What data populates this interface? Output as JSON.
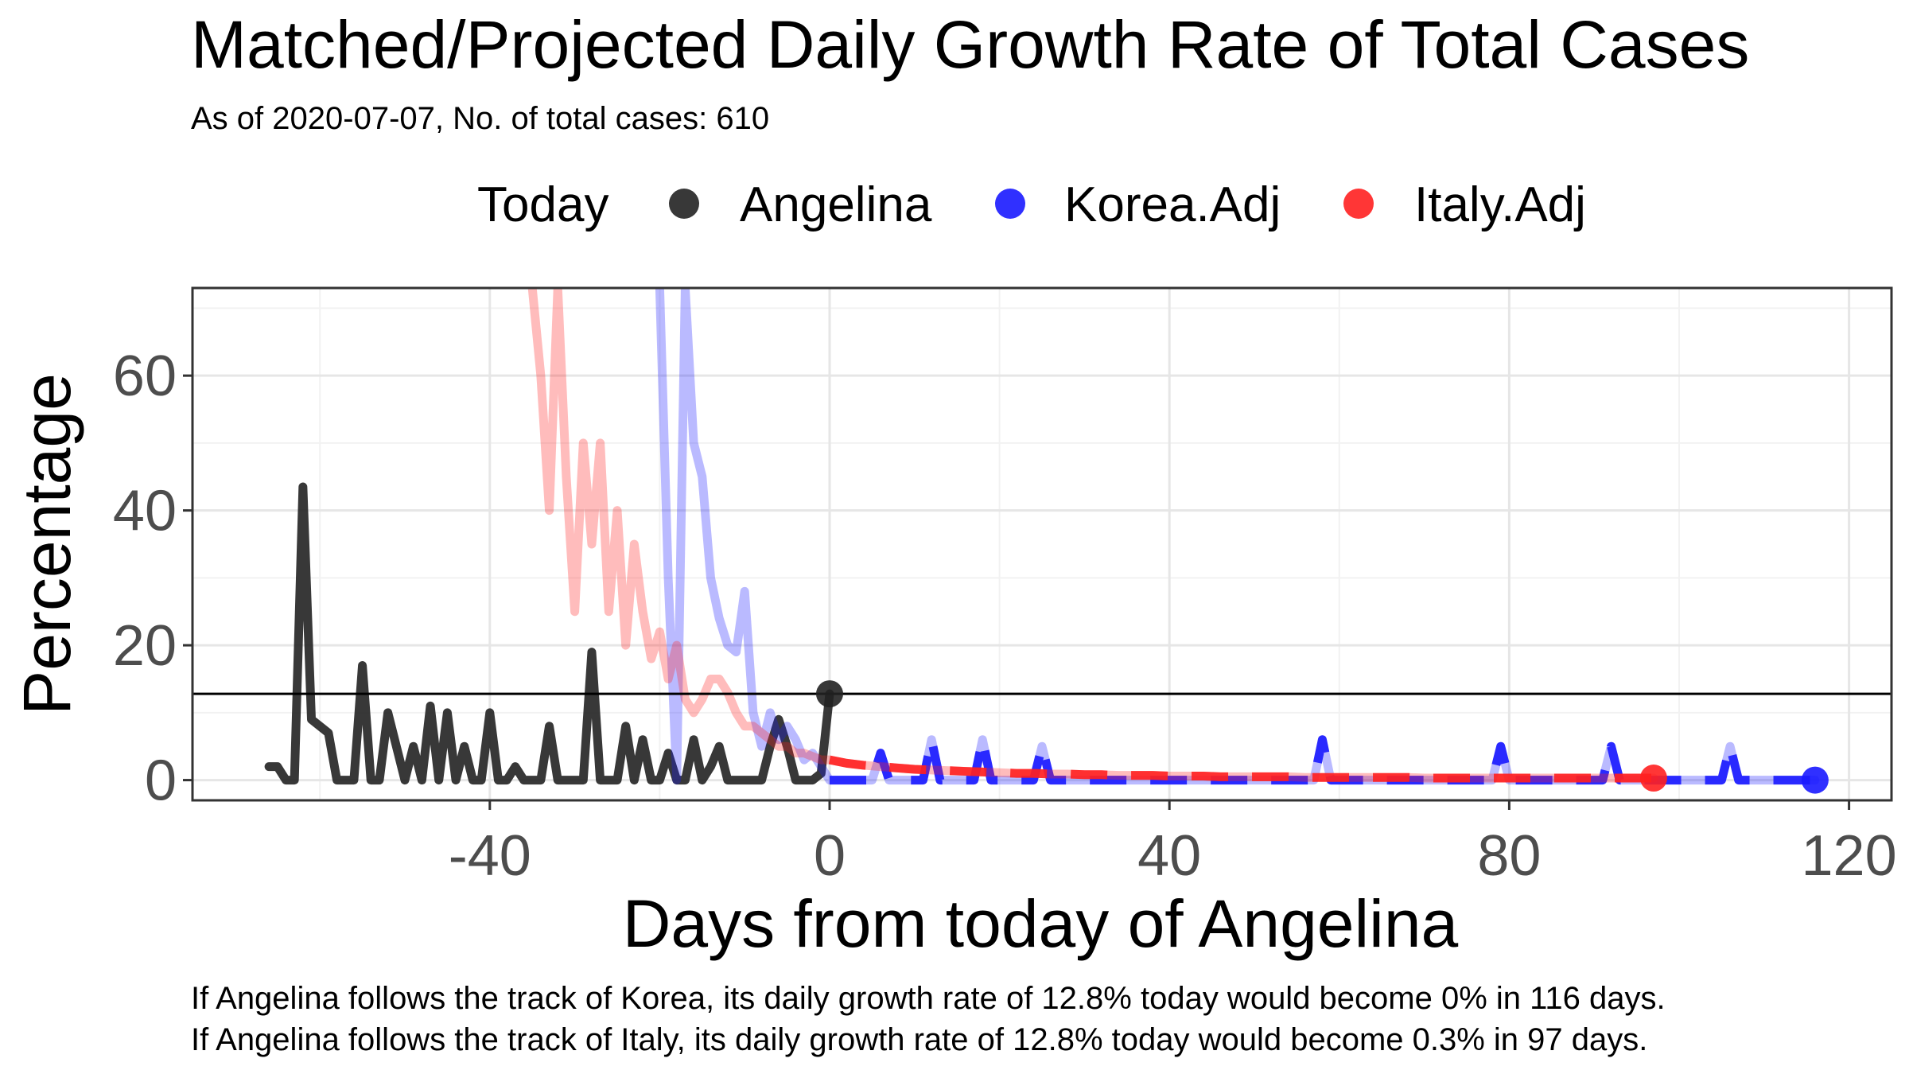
{
  "chart_data": {
    "type": "line",
    "title": "Matched/Projected Daily Growth Rate of Total Cases",
    "subtitle": "As of 2020-07-07, No. of total cases: 610",
    "xlabel": "Days from today of Angelina",
    "ylabel": "Percentage",
    "xlim": [
      -75,
      125
    ],
    "ylim": [
      -3,
      73
    ],
    "x_ticks": [
      -40,
      0,
      40,
      80,
      120
    ],
    "y_ticks": [
      0,
      20,
      40,
      60
    ],
    "grid": true,
    "legend": {
      "title": "Today",
      "placement": "top",
      "entries": [
        {
          "label": "Angelina",
          "color": "#222222"
        },
        {
          "label": "Korea.Adj",
          "color": "#1a1aff"
        },
        {
          "label": "Italy.Adj",
          "color": "#ff2020"
        }
      ]
    },
    "reference_line": {
      "y": 12.8
    },
    "series": [
      {
        "name": "Angelina",
        "color": "#222222",
        "style": "solid",
        "x": [
          -66,
          -65,
          -64,
          -63,
          -62,
          -61,
          -60,
          -59,
          -58,
          -57,
          -56,
          -55,
          -54,
          -53,
          -52,
          -51,
          -50,
          -49,
          -48,
          -47,
          -46,
          -45,
          -44,
          -43,
          -42,
          -41,
          -40,
          -39,
          -38,
          -37,
          -36,
          -35,
          -34,
          -33,
          -32,
          -31,
          -30,
          -29,
          -28,
          -27,
          -26,
          -25,
          -24,
          -23,
          -22,
          -21,
          -20,
          -19,
          -18,
          -17,
          -16,
          -15,
          -14,
          -13,
          -12,
          -11,
          -10,
          -9,
          -8,
          -7,
          -6,
          -5,
          -4,
          -3,
          -2,
          -1,
          0
        ],
        "y": [
          2,
          2,
          0,
          0,
          43.5,
          9,
          8,
          7,
          0,
          0,
          0,
          17,
          0,
          0,
          10,
          5,
          0,
          5,
          0,
          11,
          0,
          10,
          0,
          5,
          0,
          0,
          10,
          0,
          0,
          2,
          0,
          0,
          0,
          8,
          0,
          0,
          0,
          0,
          19,
          0,
          0,
          0,
          8,
          0,
          6,
          0,
          0,
          4,
          0,
          0,
          6,
          0,
          2,
          5,
          0,
          0,
          0,
          0,
          0,
          5,
          9,
          5,
          0,
          0,
          0,
          1,
          12.8
        ]
      },
      {
        "name": "Korea.Adj",
        "color": "#1a1aff",
        "style": "dashed-projection",
        "x": [
          -20,
          -19,
          -18,
          -17,
          -16,
          -15,
          -14,
          -13,
          -12,
          -11,
          -10,
          -9,
          -8,
          -7,
          -6,
          -5,
          -4,
          -3,
          -2,
          -1,
          0,
          1,
          2,
          3,
          4,
          5,
          6,
          7,
          8,
          9,
          10,
          11,
          12,
          13,
          14,
          15,
          16,
          17,
          18,
          19,
          20,
          21,
          22,
          23,
          24,
          25,
          26,
          27,
          28,
          29,
          30,
          31,
          32,
          33,
          34,
          35,
          36,
          37,
          38,
          39,
          40,
          41,
          42,
          43,
          44,
          45,
          46,
          47,
          48,
          49,
          50,
          51,
          52,
          53,
          54,
          55,
          56,
          57,
          58,
          59,
          60,
          61,
          62,
          63,
          64,
          65,
          66,
          67,
          68,
          69,
          70,
          71,
          72,
          73,
          74,
          75,
          76,
          77,
          78,
          79,
          80,
          81,
          82,
          83,
          84,
          85,
          86,
          87,
          88,
          89,
          90,
          91,
          92,
          93,
          94,
          95,
          96,
          97,
          98,
          99,
          100,
          101,
          102,
          103,
          104,
          105,
          106,
          107,
          108,
          109,
          110,
          111,
          112,
          113,
          114,
          115,
          116
        ],
        "y": [
          73,
          30,
          0,
          73,
          50,
          45,
          30,
          24,
          20,
          19,
          28,
          10,
          5,
          10,
          6,
          8,
          6,
          3,
          4,
          2,
          0,
          0,
          0,
          0,
          0,
          0,
          4,
          0,
          0,
          0,
          0,
          0,
          6,
          0,
          0,
          0,
          0,
          0,
          6,
          0,
          0,
          0,
          0,
          0,
          0,
          5,
          0,
          0,
          0,
          0,
          0,
          0,
          0,
          0,
          0,
          0,
          0,
          0,
          0,
          0,
          0,
          0,
          0,
          0,
          0,
          0,
          0,
          0,
          0,
          0,
          0,
          0,
          0,
          0,
          0,
          0,
          0,
          0,
          6,
          0,
          0,
          0,
          0,
          0,
          0,
          0,
          0,
          0,
          0,
          0,
          0,
          0,
          0,
          0,
          0,
          0,
          0,
          0,
          0,
          5,
          0,
          0,
          0,
          0,
          0,
          0,
          0,
          0,
          0,
          0,
          0,
          0,
          5,
          0,
          0,
          0,
          0,
          0,
          0,
          0,
          0,
          0,
          0,
          0,
          0,
          0,
          5,
          0,
          0,
          0,
          0,
          0,
          0,
          0,
          0,
          0,
          0
        ]
      },
      {
        "name": "Italy.Adj",
        "color": "#ff2020",
        "style": "dashed-projection",
        "x": [
          -35,
          -34,
          -33,
          -32,
          -31,
          -30,
          -29,
          -28,
          -27,
          -26,
          -25,
          -24,
          -23,
          -22,
          -21,
          -20,
          -19,
          -18,
          -17,
          -16,
          -15,
          -14,
          -13,
          -12,
          -11,
          -10,
          -9,
          -8,
          -7,
          -6,
          -5,
          -4,
          -3,
          -2,
          -1,
          0,
          2,
          4,
          6,
          8,
          10,
          12,
          14,
          16,
          18,
          20,
          22,
          24,
          26,
          28,
          30,
          32,
          34,
          36,
          38,
          40,
          42,
          44,
          46,
          48,
          50,
          52,
          54,
          56,
          58,
          60,
          62,
          64,
          66,
          68,
          70,
          72,
          74,
          76,
          78,
          80,
          82,
          84,
          86,
          88,
          90,
          92,
          94,
          96,
          97
        ],
        "y": [
          73,
          60,
          40,
          73,
          45,
          25,
          50,
          35,
          50,
          25,
          40,
          20,
          35,
          25,
          18,
          22,
          15,
          20,
          12,
          10,
          12,
          15,
          15,
          13,
          10,
          8,
          8,
          7,
          6,
          5,
          5,
          4,
          4,
          3.5,
          3,
          3,
          2.5,
          2.2,
          2,
          1.8,
          1.6,
          1.5,
          1.4,
          1.3,
          1.2,
          1.1,
          1.0,
          1.0,
          0.9,
          0.9,
          0.8,
          0.8,
          0.7,
          0.7,
          0.7,
          0.6,
          0.6,
          0.6,
          0.5,
          0.5,
          0.5,
          0.5,
          0.5,
          0.4,
          0.4,
          0.4,
          0.4,
          0.4,
          0.4,
          0.4,
          0.3,
          0.3,
          0.3,
          0.3,
          0.3,
          0.3,
          0.3,
          0.3,
          0.3,
          0.3,
          0.3,
          0.3,
          0.3,
          0.3,
          0.3
        ]
      }
    ],
    "today_points": [
      {
        "series": "Angelina",
        "x": 0,
        "y": 12.8
      },
      {
        "series": "Korea.Adj",
        "x": 116,
        "y": 0
      },
      {
        "series": "Italy.Adj",
        "x": 97,
        "y": 0.3
      }
    ]
  },
  "footnotes": {
    "korea": "If Angelina follows the track of Korea, its daily growth rate of 12.8% today would become 0% in 116 days.",
    "italy": "If Angelina follows the track of Italy, its daily growth rate of 12.8% today would become 0.3% in 97 days."
  }
}
